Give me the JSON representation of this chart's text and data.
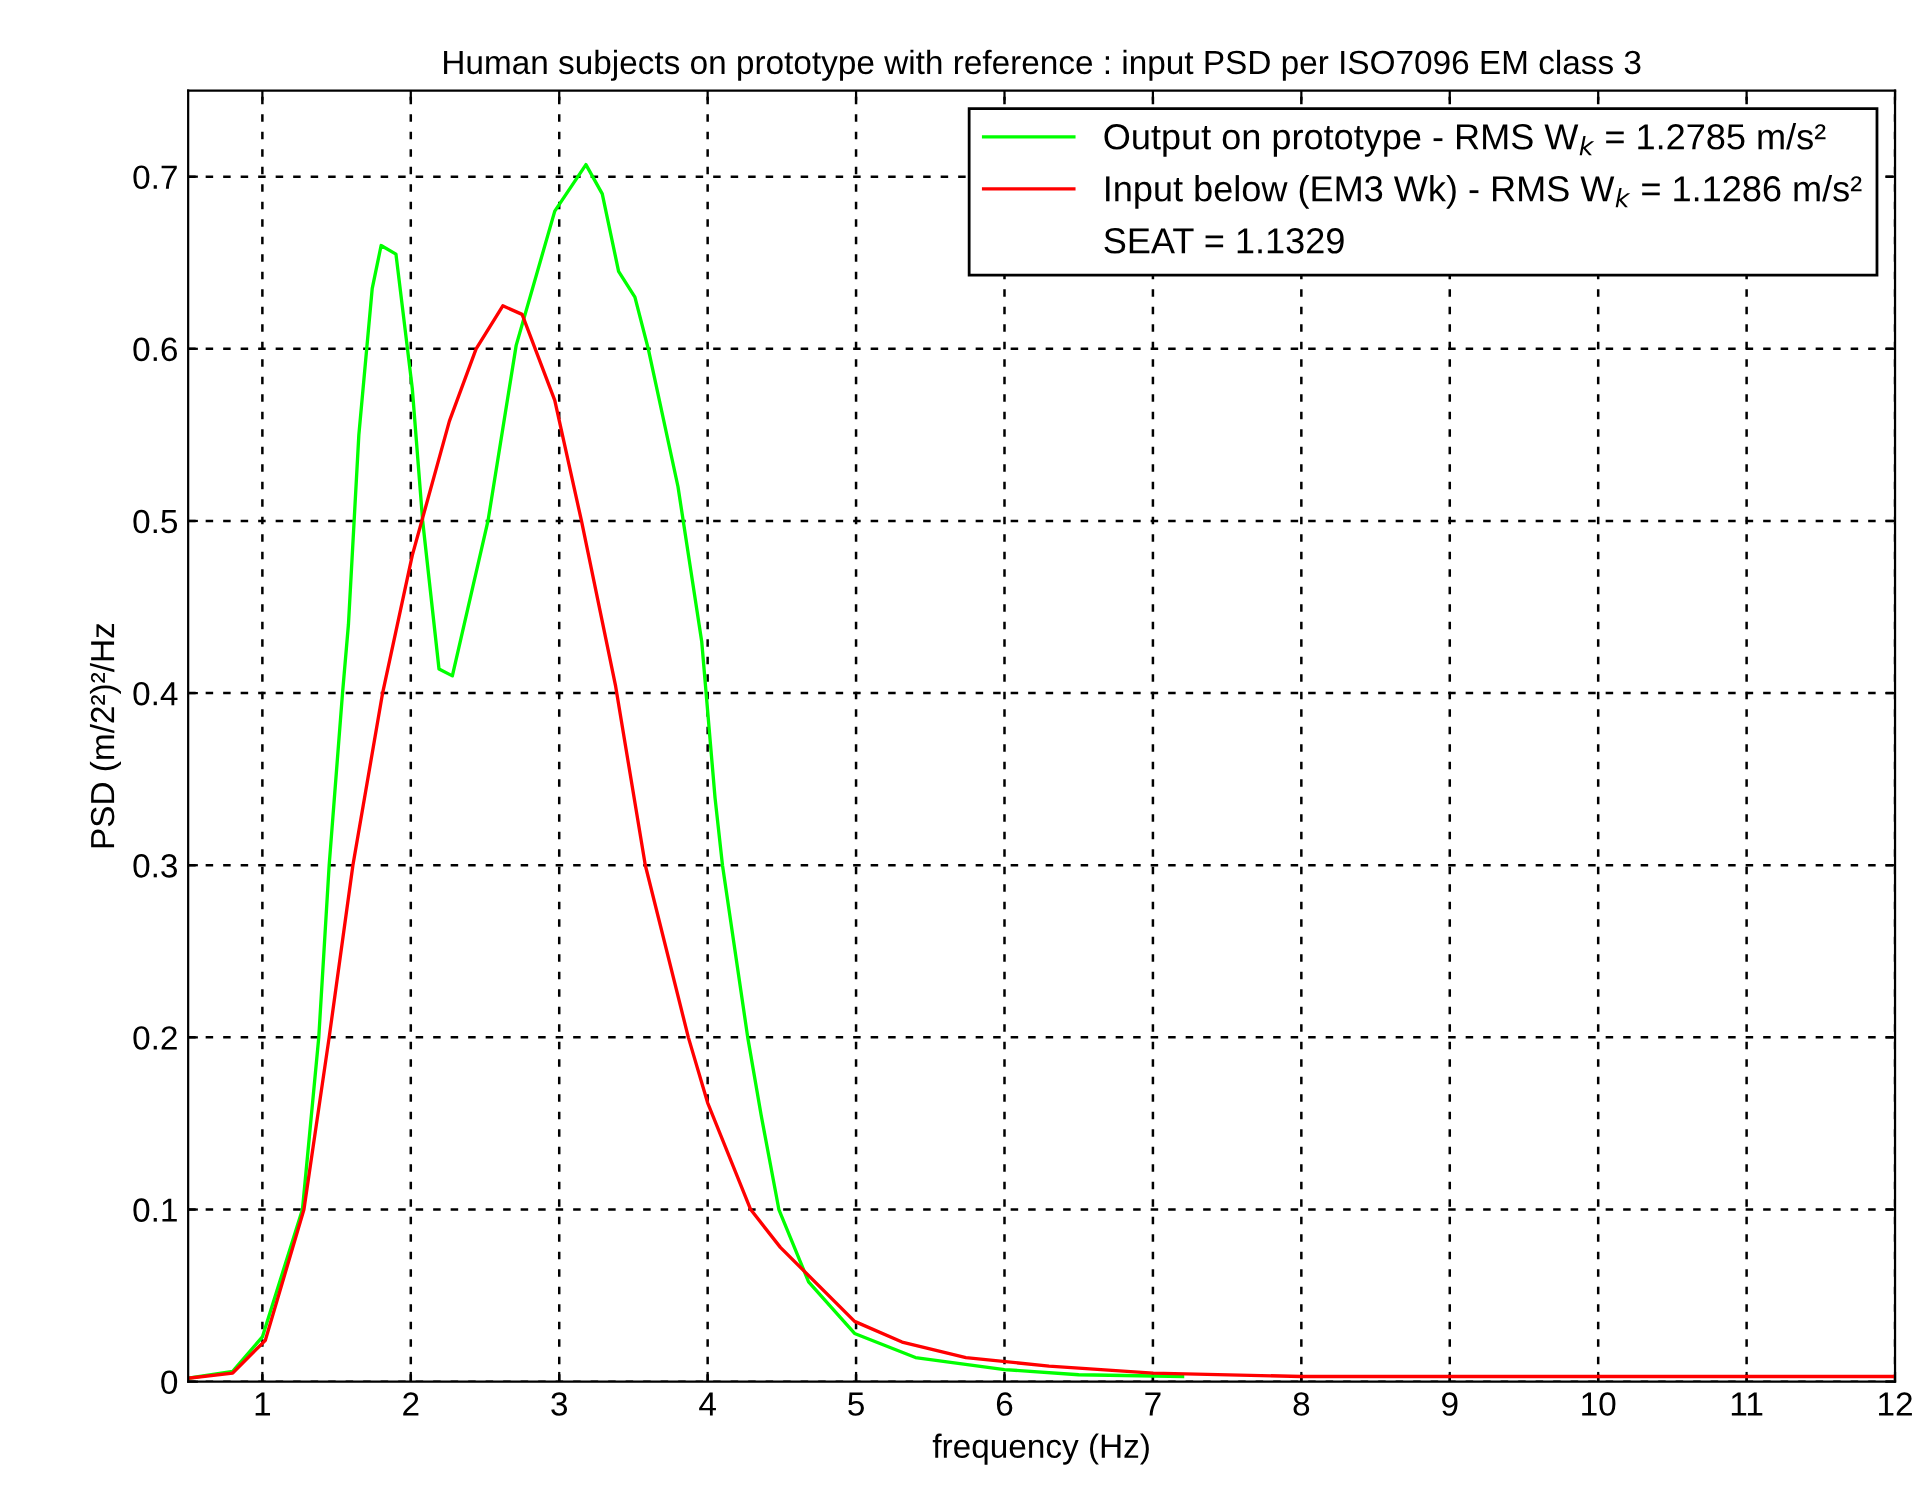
{
  "chart_data": {
    "type": "line",
    "title": "Human subjects on prototype with reference : input PSD per ISO7096 EM class 3",
    "xlabel": "frequency (Hz)",
    "ylabel": "PSD (m/2²)²/Hz",
    "series": [
      {
        "name": "Output on prototype - RMS W$_{k}$ = 1.2785 m/s²",
        "color": "#00ff00",
        "x": [
          0.5,
          0.8,
          1.0,
          1.27,
          1.38,
          1.45,
          1.54,
          1.58,
          1.65,
          1.74,
          1.8,
          1.9,
          2.01,
          2.08,
          2.19,
          2.28,
          2.52,
          2.71,
          2.97,
          3.18,
          3.29,
          3.4,
          3.51,
          3.6,
          3.8,
          3.96,
          4.05,
          4.1,
          4.27,
          4.36,
          4.48,
          4.68,
          4.99,
          5.4,
          6.0,
          6.5,
          7.2
        ],
        "values": [
          0.002,
          0.006,
          0.026,
          0.1,
          0.2,
          0.3,
          0.4,
          0.44,
          0.55,
          0.635,
          0.66,
          0.655,
          0.577,
          0.5,
          0.414,
          0.41,
          0.5,
          0.602,
          0.68,
          0.707,
          0.69,
          0.645,
          0.63,
          0.6,
          0.52,
          0.43,
          0.339,
          0.3,
          0.2,
          0.155,
          0.1,
          0.058,
          0.028,
          0.014,
          0.007,
          0.004,
          0.003
        ]
      },
      {
        "name": "Input below (EM3 Wk) - RMS W$_{k}$ = 1.1286 m/s²",
        "color": "#ff0000",
        "x": [
          0.5,
          0.8,
          1.02,
          1.28,
          1.45,
          1.61,
          1.81,
          2.01,
          2.26,
          2.44,
          2.62,
          2.75,
          2.97,
          3.15,
          3.38,
          3.58,
          3.87,
          4.0,
          4.29,
          4.49,
          4.99,
          5.31,
          5.74,
          6.3,
          7.0,
          8.0,
          10.0,
          12.0
        ],
        "values": [
          0.002,
          0.005,
          0.024,
          0.1,
          0.2,
          0.3,
          0.4,
          0.48,
          0.558,
          0.6,
          0.625,
          0.62,
          0.57,
          0.5,
          0.404,
          0.3,
          0.2,
          0.162,
          0.1,
          0.078,
          0.035,
          0.023,
          0.014,
          0.009,
          0.005,
          0.003,
          0.003,
          0.003
        ]
      }
    ],
    "annotations": [
      "SEAT = 1.1329"
    ],
    "xlim": [
      0.5,
      12
    ],
    "xticks": [
      1,
      2,
      3,
      4,
      5,
      6,
      7,
      8,
      9,
      10,
      11,
      12
    ],
    "ylim": [
      0,
      0.75
    ],
    "yticks": [
      0,
      0.1,
      0.2,
      0.3,
      0.4,
      0.5,
      0.6,
      0.7
    ],
    "grid": true,
    "legend": "top right",
    "line_style": "solid",
    "marker": "none"
  }
}
